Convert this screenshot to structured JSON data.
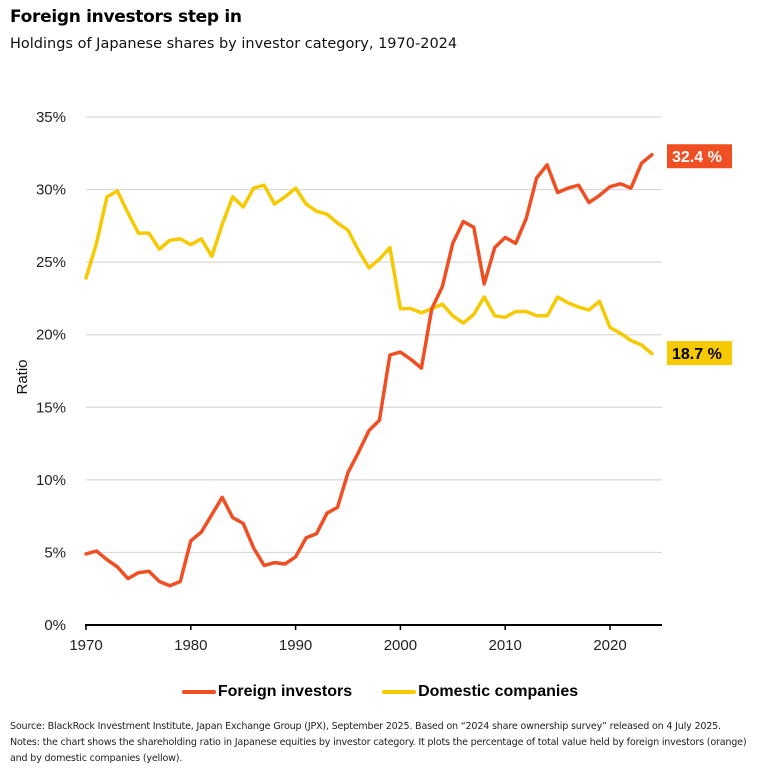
{
  "header": {
    "title": "Foreign investors step in",
    "subtitle": "Holdings of Japanese shares by investor category, 1970-2024"
  },
  "colors": {
    "foreign": "#f04e23",
    "domestic": "#f7c900",
    "grid": "#d9d9d9",
    "axis": "#000000"
  },
  "legend": {
    "items": [
      {
        "label": "Foreign investors",
        "color": "#f04e23"
      },
      {
        "label": "Domestic companies",
        "color": "#f7c900"
      }
    ]
  },
  "end_labels": {
    "foreign": "32.4 %",
    "domestic": "18.7 %"
  },
  "source_note": "Source: BlackRock Investment Institute, Japan Exchange Group (JPX), September 2025. Based on “2024 share ownership survey” released on 4 July 2025. Notes: the chart shows the shareholding ratio in Japanese equities by investor category. It plots the percentage of total value held by foreign investors (orange) and by domestic companies (yellow).",
  "chart_data": {
    "type": "line",
    "title": "Foreign investors step in",
    "subtitle": "Holdings of Japanese shares by investor category, 1970-2024",
    "xlabel": "",
    "ylabel": "Ratio",
    "xlim": [
      1970,
      2025
    ],
    "ylim": [
      0,
      35
    ],
    "xticks": [
      1970,
      1980,
      1990,
      2000,
      2010,
      2020
    ],
    "yticks": [
      0,
      5,
      10,
      15,
      20,
      25,
      30,
      35
    ],
    "ytick_labels": [
      "0%",
      "5%",
      "10%",
      "15%",
      "20%",
      "25%",
      "30%",
      "35%"
    ],
    "grid": "horizontal",
    "legend_position": "bottom-center",
    "x": [
      1970,
      1971,
      1972,
      1973,
      1974,
      1975,
      1976,
      1977,
      1978,
      1979,
      1980,
      1981,
      1982,
      1983,
      1984,
      1985,
      1986,
      1987,
      1988,
      1989,
      1990,
      1991,
      1992,
      1993,
      1994,
      1995,
      1996,
      1997,
      1998,
      1999,
      2000,
      2001,
      2002,
      2003,
      2004,
      2005,
      2006,
      2007,
      2008,
      2009,
      2010,
      2011,
      2012,
      2013,
      2014,
      2015,
      2016,
      2017,
      2018,
      2019,
      2020,
      2021,
      2022,
      2023,
      2024
    ],
    "series": [
      {
        "name": "Foreign investors",
        "color": "#f04e23",
        "end_label": "32.4 %",
        "values": [
          4.9,
          5.1,
          4.5,
          4.0,
          3.2,
          3.6,
          3.7,
          3.0,
          2.7,
          3.0,
          5.8,
          6.4,
          7.6,
          8.8,
          7.4,
          7.0,
          5.3,
          4.1,
          4.3,
          4.2,
          4.7,
          6.0,
          6.3,
          7.7,
          8.1,
          10.5,
          11.9,
          13.4,
          14.1,
          18.6,
          18.8,
          18.3,
          17.7,
          21.8,
          23.3,
          26.3,
          27.8,
          27.4,
          23.5,
          26.0,
          26.7,
          26.3,
          28.0,
          30.8,
          31.7,
          29.8,
          30.1,
          30.3,
          29.1,
          29.6,
          30.2,
          30.4,
          30.1,
          31.8,
          32.4
        ]
      },
      {
        "name": "Domestic companies",
        "color": "#f7c900",
        "end_label": "18.7 %",
        "values": [
          23.9,
          26.3,
          29.5,
          29.9,
          28.4,
          27.0,
          27.0,
          25.9,
          26.5,
          26.6,
          26.2,
          26.6,
          25.4,
          27.6,
          29.5,
          28.8,
          30.1,
          30.3,
          29.0,
          29.5,
          30.1,
          29.0,
          28.5,
          28.3,
          27.7,
          27.2,
          25.8,
          24.6,
          25.2,
          26.0,
          21.8,
          21.8,
          21.5,
          21.8,
          22.1,
          21.3,
          20.8,
          21.4,
          22.6,
          21.3,
          21.2,
          21.6,
          21.6,
          21.3,
          21.3,
          22.6,
          22.2,
          21.9,
          21.7,
          22.3,
          20.5,
          20.1,
          19.6,
          19.3,
          18.7
        ]
      }
    ]
  }
}
